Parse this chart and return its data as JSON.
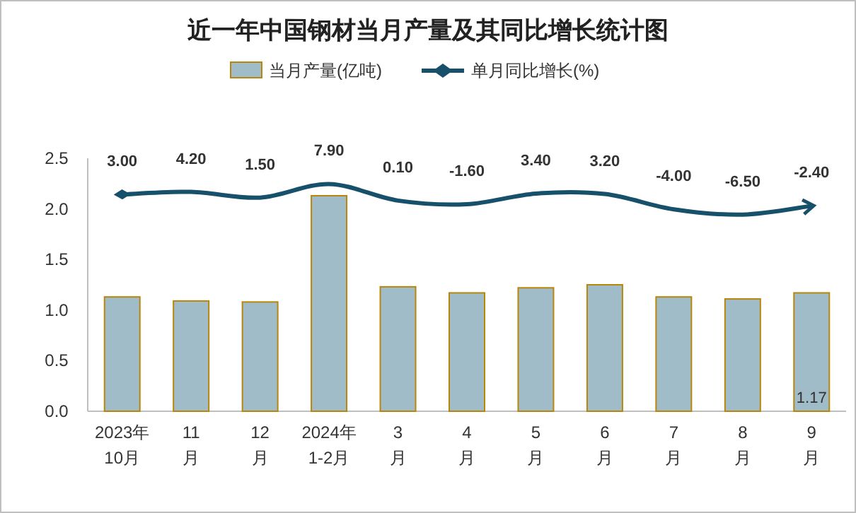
{
  "chart_data": {
    "type": "bar",
    "title": "近一年中国钢材当月产量及其同比增长统计图",
    "categories": [
      "2023年\n10月",
      "11\n月",
      "12\n月",
      "2024年\n1-2月",
      "3\n月",
      "4\n月",
      "5\n月",
      "6\n月",
      "7\n月",
      "8\n月",
      "9\n月"
    ],
    "series": [
      {
        "name": "当月产量(亿吨)",
        "color": "#a0bcc8",
        "values": [
          1.13,
          1.09,
          1.08,
          2.13,
          1.23,
          1.17,
          1.22,
          1.25,
          1.13,
          1.11,
          1.17
        ],
        "value_labels": [
          null,
          null,
          null,
          null,
          null,
          null,
          null,
          null,
          null,
          null,
          "1.17"
        ]
      },
      {
        "name": "单月同比增长(%)",
        "type": "line",
        "axis": "y2",
        "color": "#17506a",
        "values": [
          3.0,
          4.2,
          1.5,
          7.9,
          0.1,
          -1.6,
          3.4,
          3.2,
          -4.0,
          -6.5,
          -2.4
        ],
        "value_labels": [
          "3.00",
          "4.20",
          "1.50",
          "7.90",
          "0.10",
          "-1.60",
          "3.40",
          "3.20",
          "-4.00",
          "-6.50",
          "-2.40"
        ]
      }
    ],
    "ylim": [
      0,
      2.5
    ],
    "yticks": [
      {
        "value": 0,
        "label": "0.0"
      },
      {
        "value": 0.5,
        "label": "0.5"
      },
      {
        "value": 1,
        "label": "1.0"
      },
      {
        "value": 1.5,
        "label": "1.5"
      },
      {
        "value": 2,
        "label": "2.0"
      },
      {
        "value": 2.5,
        "label": "2.5"
      }
    ],
    "y2lim": [
      -99,
      20
    ],
    "legend": "top",
    "grid": false
  }
}
